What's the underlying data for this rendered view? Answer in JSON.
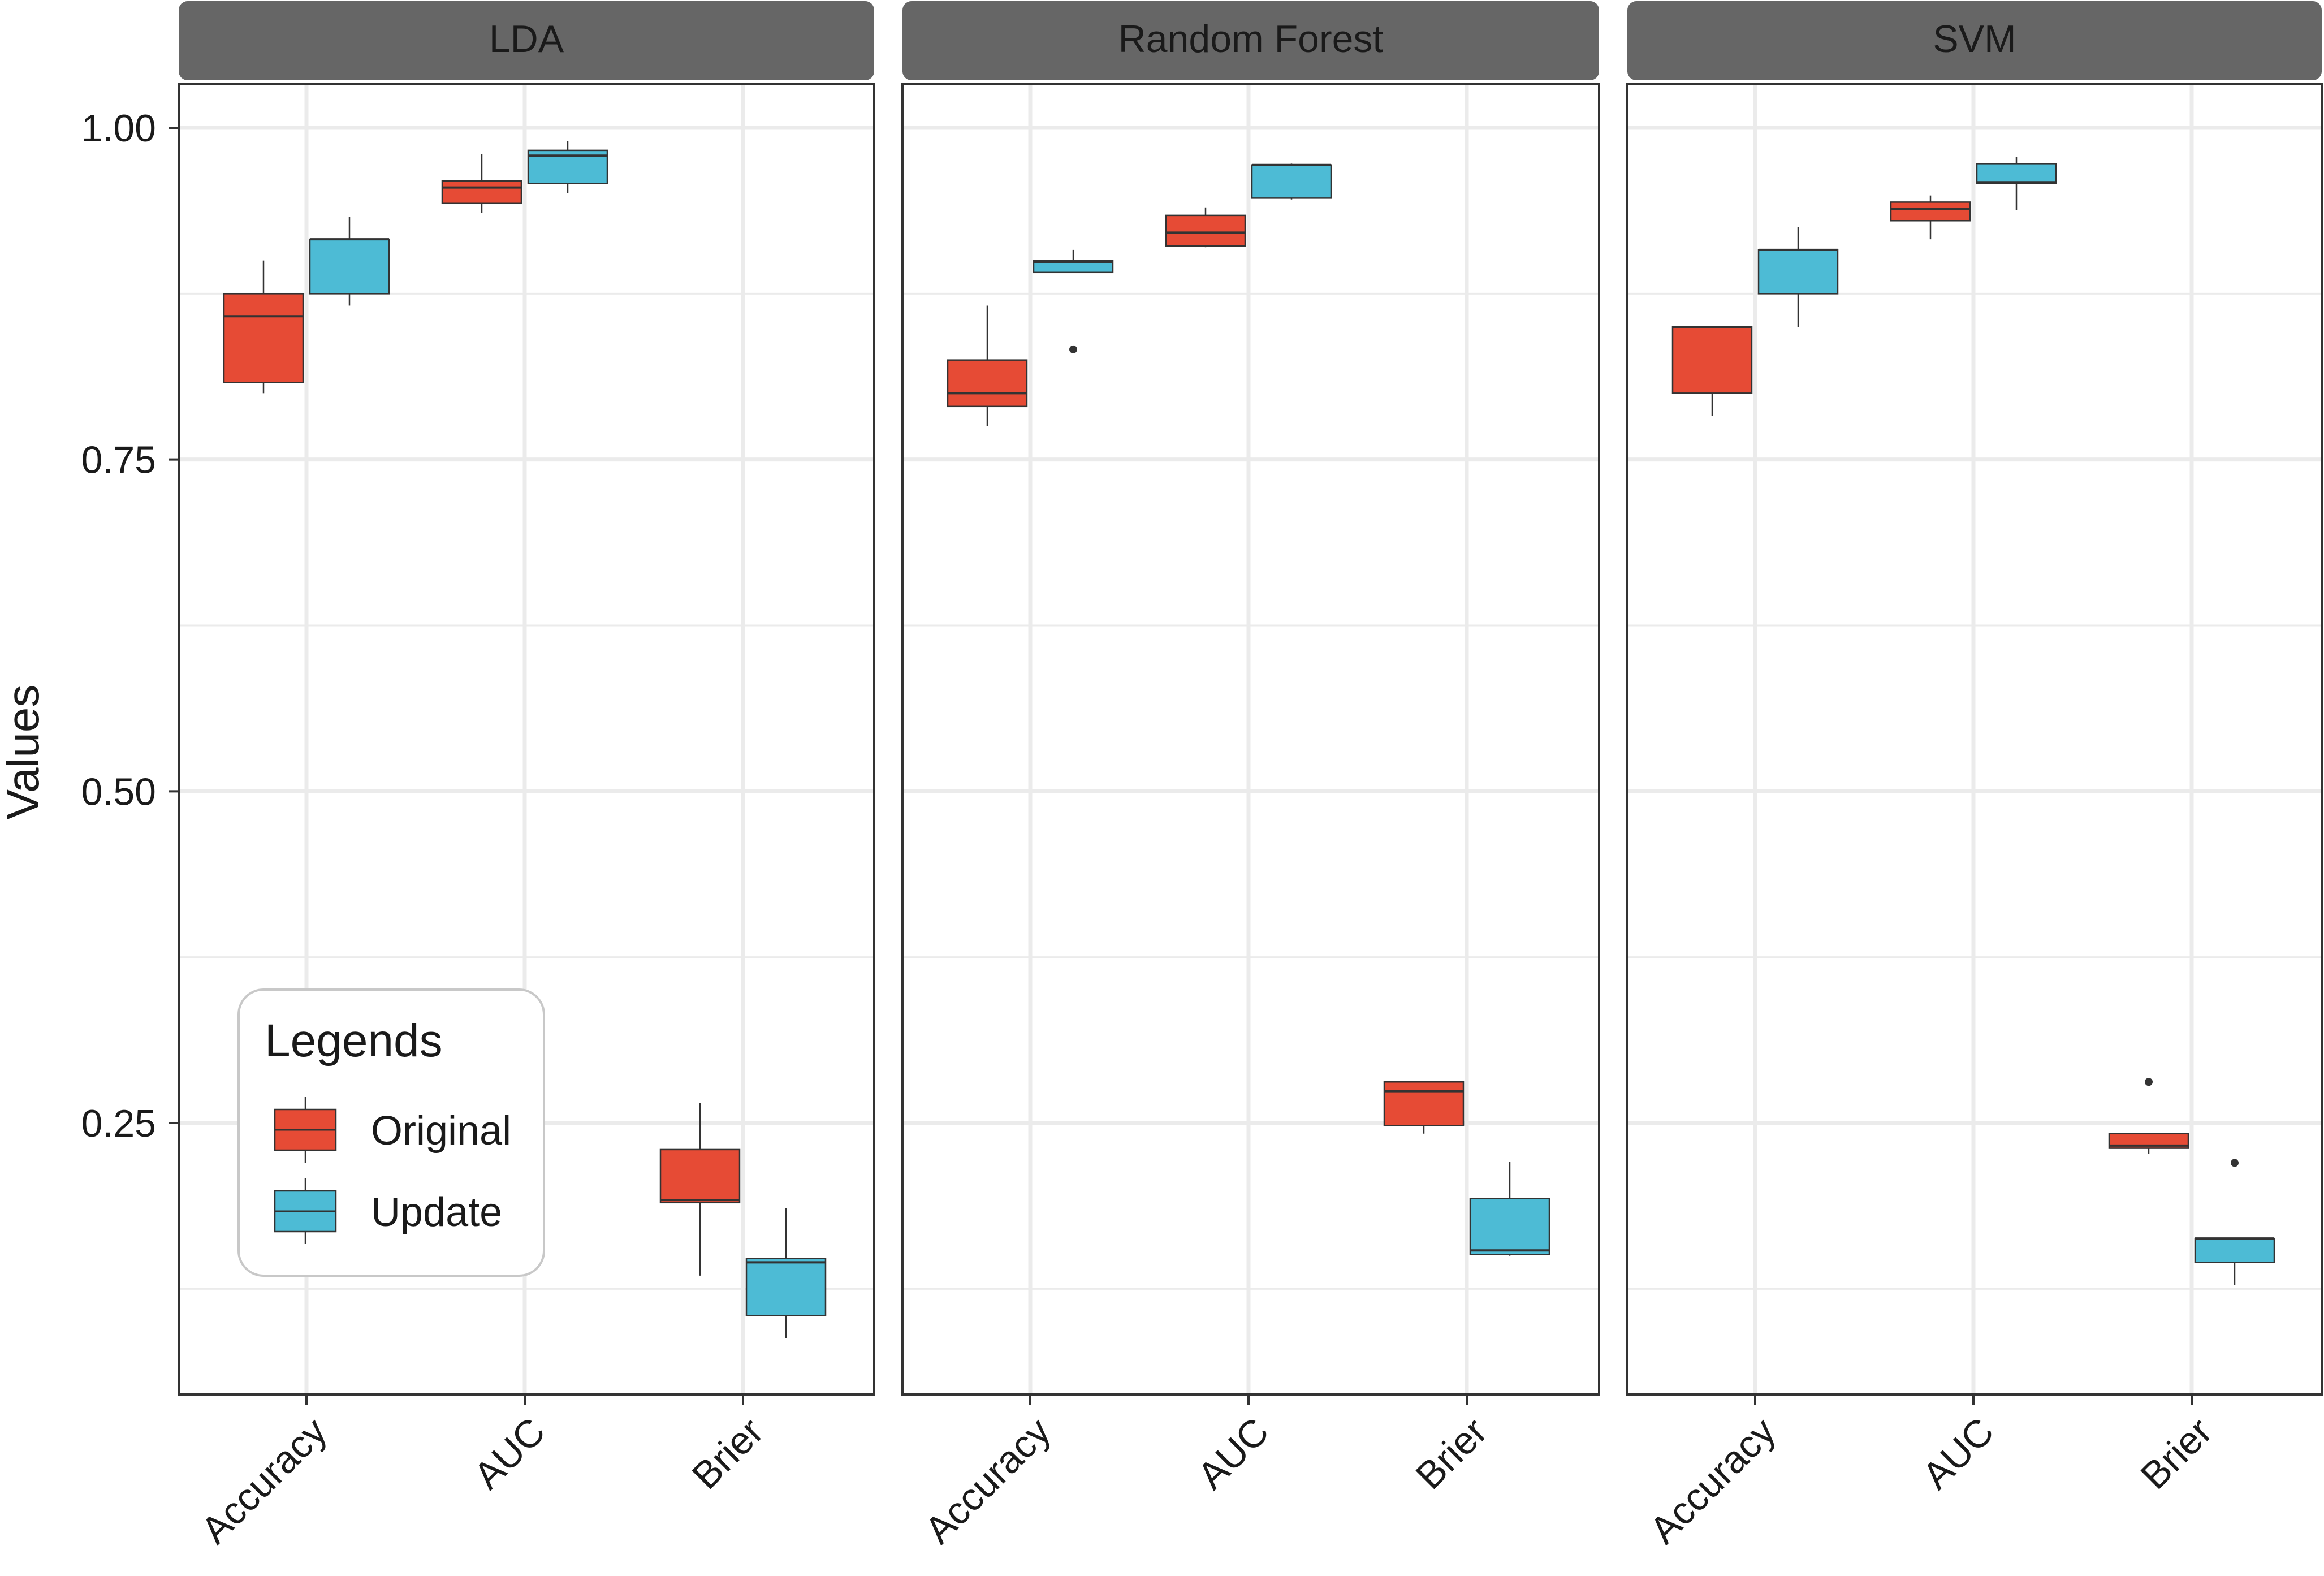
{
  "chart_data": {
    "type": "boxplot",
    "facets": [
      "LDA",
      "Random Forest",
      "SVM"
    ],
    "categories": [
      "Accuracy",
      "AUC",
      "Brier"
    ],
    "ylabel": "Values",
    "xlabel": "",
    "ylim": [
      0.07,
      1.04
    ],
    "y_ticks": [
      0.25,
      0.5,
      0.75,
      1.0
    ],
    "y_tick_labels": [
      "0.25",
      "0.50",
      "0.75",
      "1.00"
    ],
    "y_minor_ticks": [
      0.125,
      0.375,
      0.625,
      0.875
    ],
    "grid": true,
    "legend": {
      "title": "Legends",
      "position": "bottom-left inside first panel",
      "entries": [
        {
          "name": "Original",
          "color": "#E64B35"
        },
        {
          "name": "Update",
          "color": "#4DBBD5"
        }
      ]
    },
    "series": [
      {
        "name": "Original",
        "color": "#E64B35",
        "data": {
          "LDA": {
            "Accuracy": {
              "whisker_low": 0.8,
              "q1": 0.808,
              "median": 0.858,
              "q3": 0.875,
              "whisker_high": 0.9
            },
            "AUC": {
              "whisker_low": 0.936,
              "q1": 0.943,
              "median": 0.955,
              "q3": 0.96,
              "whisker_high": 0.98
            },
            "Brier": {
              "whisker_low": 0.135,
              "q1": 0.19,
              "median": 0.192,
              "q3": 0.23,
              "whisker_high": 0.265
            }
          },
          "Random Forest": {
            "Accuracy": {
              "whisker_low": 0.775,
              "q1": 0.79,
              "median": 0.8,
              "q3": 0.825,
              "whisker_high": 0.866
            },
            "AUC": {
              "whisker_low": 0.91,
              "q1": 0.911,
              "median": 0.921,
              "q3": 0.934,
              "whisker_high": 0.94
            },
            "Brier": {
              "whisker_low": 0.242,
              "q1": 0.248,
              "median": 0.274,
              "q3": 0.281,
              "whisker_high": 0.281
            }
          },
          "SVM": {
            "Accuracy": {
              "whisker_low": 0.783,
              "q1": 0.8,
              "median": 0.85,
              "q3": 0.85,
              "whisker_high": 0.85
            },
            "AUC": {
              "whisker_low": 0.916,
              "q1": 0.93,
              "median": 0.939,
              "q3": 0.944,
              "whisker_high": 0.949
            },
            "Brier": {
              "whisker_low": 0.227,
              "q1": 0.231,
              "median": 0.233,
              "q3": 0.242,
              "whisker_high": 0.242,
              "outliers": [
                0.281
              ]
            }
          }
        }
      },
      {
        "name": "Update",
        "color": "#4DBBD5",
        "data": {
          "LDA": {
            "Accuracy": {
              "whisker_low": 0.866,
              "q1": 0.875,
              "median": 0.916,
              "q3": 0.916,
              "whisker_high": 0.933
            },
            "AUC": {
              "whisker_low": 0.951,
              "q1": 0.958,
              "median": 0.979,
              "q3": 0.983,
              "whisker_high": 0.99
            },
            "Brier": {
              "whisker_low": 0.088,
              "q1": 0.105,
              "median": 0.145,
              "q3": 0.148,
              "whisker_high": 0.186
            }
          },
          "Random Forest": {
            "Accuracy": {
              "whisker_low": 0.891,
              "q1": 0.891,
              "median": 0.899,
              "q3": 0.9,
              "whisker_high": 0.908,
              "outliers": [
                0.833
              ]
            },
            "AUC": {
              "whisker_low": 0.946,
              "q1": 0.947,
              "median": 0.972,
              "q3": 0.972,
              "whisker_high": 0.973
            },
            "Brier": {
              "whisker_low": 0.15,
              "q1": 0.151,
              "median": 0.154,
              "q3": 0.193,
              "whisker_high": 0.221
            }
          },
          "SVM": {
            "Accuracy": {
              "whisker_low": 0.85,
              "q1": 0.875,
              "median": 0.908,
              "q3": 0.908,
              "whisker_high": 0.925
            },
            "AUC": {
              "whisker_low": 0.938,
              "q1": 0.958,
              "median": 0.959,
              "q3": 0.973,
              "whisker_high": 0.978
            },
            "Brier": {
              "whisker_low": 0.128,
              "q1": 0.145,
              "median": 0.163,
              "q3": 0.163,
              "whisker_high": 0.163,
              "outliers": [
                0.22
              ]
            }
          }
        }
      }
    ]
  }
}
